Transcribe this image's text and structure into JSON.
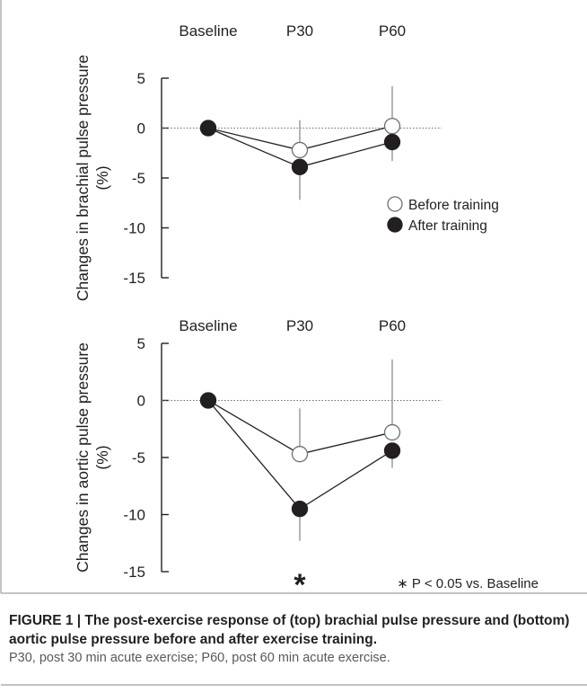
{
  "chart_data": [
    {
      "type": "line",
      "panel": "top",
      "categories": [
        "Baseline",
        "P30",
        "P60"
      ],
      "ylabel_line1": "Changes in brachial pulse pressure",
      "ylabel_line2": "(%)",
      "ylim": [
        -15,
        5
      ],
      "yticks": [
        5,
        0,
        -5,
        -10,
        -15
      ],
      "reference_line": 0,
      "series": [
        {
          "name": "Before training",
          "marker": "open-circle",
          "values": [
            0,
            -2.2,
            0.2
          ],
          "errors": [
            0,
            3.0,
            4.0
          ]
        },
        {
          "name": "After training",
          "marker": "filled-circle",
          "values": [
            0,
            -3.9,
            -1.4
          ],
          "errors": [
            0,
            3.3,
            1.9
          ]
        }
      ],
      "legend_position": "center-right"
    },
    {
      "type": "line",
      "panel": "bottom",
      "categories": [
        "Baseline",
        "P30",
        "P60"
      ],
      "ylabel_line1": "Changes in aortic pulse pressure",
      "ylabel_line2": "(%)",
      "ylim": [
        -15,
        5
      ],
      "yticks": [
        5,
        0,
        -5,
        -10,
        -15
      ],
      "reference_line": 0,
      "series": [
        {
          "name": "Before training",
          "marker": "open-circle",
          "values": [
            0,
            -4.7,
            -2.8
          ],
          "errors": [
            0,
            4.0,
            6.4
          ]
        },
        {
          "name": "After training",
          "marker": "filled-circle",
          "values": [
            0,
            -9.5,
            -4.4
          ],
          "errors": [
            0,
            2.8,
            1.5
          ]
        }
      ],
      "significance": {
        "category": "P30",
        "symbol": "*"
      },
      "note": "∗  P < 0.05 vs. Baseline"
    }
  ],
  "caption": {
    "bold": "FIGURE 1 | The post-exercise response of (top) brachial pulse pressure and (bottom) aortic pulse pressure before and after exercise training.",
    "note": "P30, post 30 min acute exercise; P60, post 60 min acute exercise."
  },
  "colors": {
    "ink": "#231f20",
    "axis": "#231f20",
    "errorbar": "#8c8c8c",
    "reference": "#6d6e71",
    "frame": "#9e9e9e"
  }
}
